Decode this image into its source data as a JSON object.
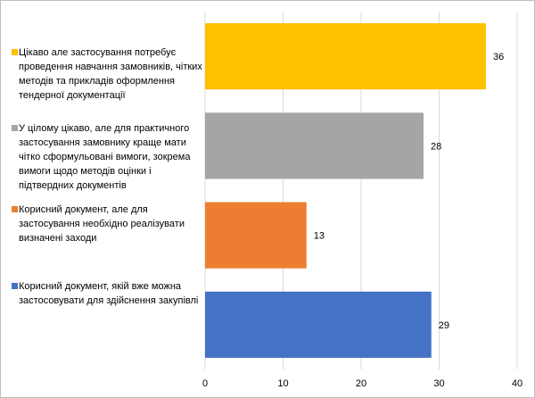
{
  "chart_data": {
    "type": "bar",
    "orientation": "horizontal",
    "categories": [
      "Корисний документ, якій вже можна застосовувати для здійснення закупівлі",
      "Корисний документ, але для застосування необхідно реалізувати визначені заходи",
      "У цілому цікаво, але для практичного застосування замовнику краще мати чітко сформульовані вимоги, зокрема вимоги щодо методів оцінки і підтвердних документів",
      "Цікаво але застосування потребує проведення навчання замовників, чітких методів та прикладів оформлення тендерної документації"
    ],
    "values": [
      29,
      13,
      28,
      36
    ],
    "colors": [
      "#4472C4",
      "#ED7D31",
      "#A5A5A5",
      "#FFC000"
    ],
    "data_labels": [
      "29",
      "13",
      "28",
      "36"
    ],
    "xlim": [
      0,
      40
    ],
    "x_ticks": [
      "0",
      "10",
      "20",
      "30",
      "40"
    ],
    "grid": true,
    "legend_position": "left",
    "title": "",
    "xlabel": "",
    "ylabel": ""
  },
  "legend": [
    {
      "label": "Цікаво але застосування потребує проведення навчання замовників, чітких методів та прикладів оформлення тендерної документації",
      "color": "#FFC000"
    },
    {
      "label": "У цілому цікаво, але для практичного застосування замовнику краще мати чітко сформульовані вимоги, зокрема вимоги щодо методів оцінки і підтвердних документів",
      "color": "#A5A5A5"
    },
    {
      "label": "Корисний документ, але для застосування необхідно реалізувати визначені заходи",
      "color": "#ED7D31"
    },
    {
      "label": "Корисний документ, якій вже можна застосовувати для здійснення закупівлі",
      "color": "#4472C4"
    }
  ]
}
